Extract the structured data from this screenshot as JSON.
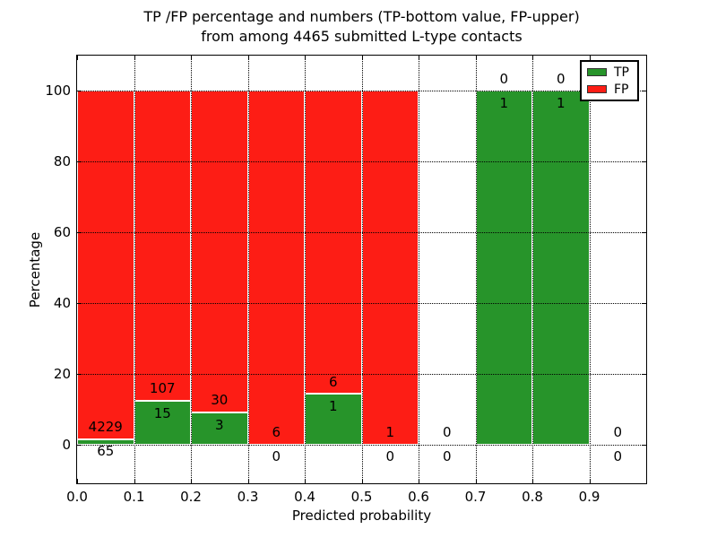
{
  "chart_data": {
    "type": "bar",
    "stacked": true,
    "title_line1": "TP /FP percentage and numbers (TP-bottom value, FP-upper)",
    "title_line2": "from among 4465 submitted L-type contacts",
    "xlabel": "Predicted probability",
    "ylabel": "Percentage",
    "xlim": [
      0.0,
      1.0
    ],
    "ylim": [
      -11,
      110
    ],
    "total_submitted": 4465,
    "grid": {
      "style": "dotted",
      "color": "#000000",
      "drawn_over_bars": true
    },
    "colors": {
      "tp": "#27942a",
      "fp": "#fd1d15",
      "bar_edge": "#ffffff",
      "text": "#000000"
    },
    "xticks": [
      {
        "label": "0.0",
        "value": 0.0
      },
      {
        "label": "0.1",
        "value": 0.1
      },
      {
        "label": "0.2",
        "value": 0.2
      },
      {
        "label": "0.3",
        "value": 0.3
      },
      {
        "label": "0.4",
        "value": 0.4
      },
      {
        "label": "0.5",
        "value": 0.5
      },
      {
        "label": "0.6",
        "value": 0.6
      },
      {
        "label": "0.7",
        "value": 0.7
      },
      {
        "label": "0.8",
        "value": 0.8
      },
      {
        "label": "0.9",
        "value": 0.9
      }
    ],
    "yticks": [
      {
        "label": "0",
        "value": 0
      },
      {
        "label": "20",
        "value": 20
      },
      {
        "label": "40",
        "value": 40
      },
      {
        "label": "60",
        "value": 60
      },
      {
        "label": "80",
        "value": 80
      },
      {
        "label": "100",
        "value": 100
      }
    ],
    "legend": {
      "position": "upper right",
      "entries": [
        {
          "label": "TP",
          "color": "#27942a"
        },
        {
          "label": "FP",
          "color": "#fd1d15"
        }
      ]
    },
    "bin_edges": [
      0.0,
      0.1,
      0.2,
      0.3,
      0.4,
      0.5,
      0.6,
      0.7,
      0.8,
      0.9,
      1.0
    ],
    "series": [
      {
        "name": "TP",
        "counts": [
          65,
          15,
          3,
          0,
          1,
          0,
          0,
          1,
          1,
          0
        ],
        "pct": [
          1.51,
          12.3,
          9.09,
          0,
          14.29,
          0,
          0,
          100,
          100,
          0
        ]
      },
      {
        "name": "FP",
        "counts": [
          4229,
          107,
          30,
          6,
          6,
          1,
          0,
          0,
          0,
          0
        ],
        "pct": [
          98.49,
          87.7,
          90.91,
          100,
          85.71,
          100,
          0,
          0,
          0,
          0
        ]
      }
    ],
    "bins": [
      {
        "x0": 0.0,
        "x1": 0.1,
        "tp": 65,
        "fp": 4229,
        "tp_pct": 1.51,
        "fp_pct": 98.49
      },
      {
        "x0": 0.1,
        "x1": 0.2,
        "tp": 15,
        "fp": 107,
        "tp_pct": 12.3,
        "fp_pct": 87.7
      },
      {
        "x0": 0.2,
        "x1": 0.3,
        "tp": 3,
        "fp": 30,
        "tp_pct": 9.09,
        "fp_pct": 90.91
      },
      {
        "x0": 0.3,
        "x1": 0.4,
        "tp": 0,
        "fp": 6,
        "tp_pct": 0,
        "fp_pct": 100
      },
      {
        "x0": 0.4,
        "x1": 0.5,
        "tp": 1,
        "fp": 6,
        "tp_pct": 14.29,
        "fp_pct": 85.71
      },
      {
        "x0": 0.5,
        "x1": 0.6,
        "tp": 0,
        "fp": 1,
        "tp_pct": 0,
        "fp_pct": 100
      },
      {
        "x0": 0.6,
        "x1": 0.7,
        "tp": 0,
        "fp": 0,
        "tp_pct": 0,
        "fp_pct": 0
      },
      {
        "x0": 0.7,
        "x1": 0.8,
        "tp": 1,
        "fp": 0,
        "tp_pct": 100,
        "fp_pct": 0
      },
      {
        "x0": 0.8,
        "x1": 0.9,
        "tp": 1,
        "fp": 0,
        "tp_pct": 100,
        "fp_pct": 0
      },
      {
        "x0": 0.9,
        "x1": 1.0,
        "tp": 0,
        "fp": 0,
        "tp_pct": 0,
        "fp_pct": 0
      }
    ]
  }
}
